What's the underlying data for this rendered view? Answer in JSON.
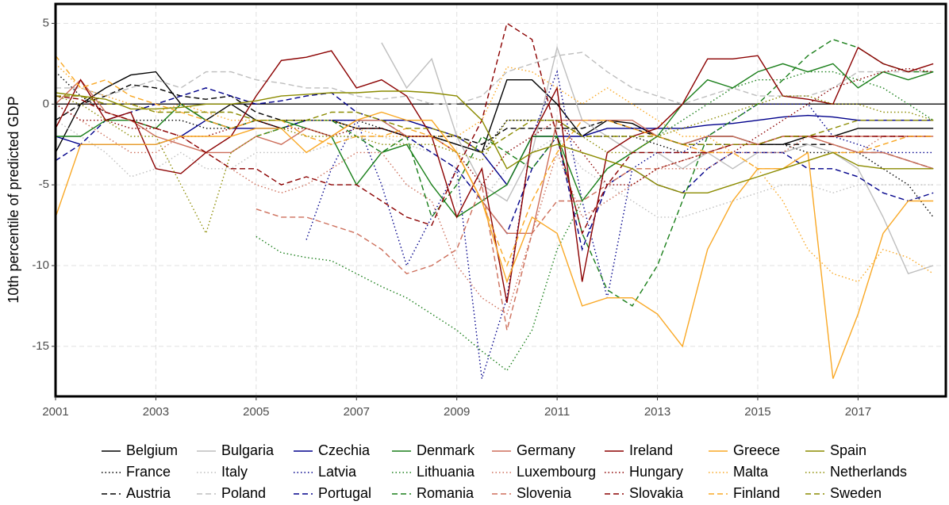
{
  "chart_data": {
    "type": "line",
    "y_label": "10th percentile of predicted GDP",
    "xlim": [
      2001,
      2018.75
    ],
    "ylim": [
      -18.1,
      6.2
    ],
    "xticks": [
      2001,
      2003,
      2005,
      2007,
      2009,
      2011,
      2013,
      2015,
      2017
    ],
    "yticks": [
      -15,
      -10,
      -5,
      0,
      5
    ],
    "grid": true,
    "hline": 0,
    "legend": "bottom",
    "x": [
      2001,
      2001.5,
      2002,
      2002.5,
      2003,
      2003.5,
      2004,
      2004.5,
      2005,
      2005.5,
      2006,
      2006.5,
      2007,
      2007.5,
      2008,
      2008.5,
      2009,
      2009.5,
      2010,
      2010.5,
      2011,
      2011.5,
      2012,
      2012.5,
      2013,
      2013.5,
      2014,
      2014.5,
      2015,
      2015.5,
      2016,
      2016.5,
      2017,
      2017.5,
      2018,
      2018.5
    ],
    "series": [
      {
        "name": "Belgium",
        "color": "#000000",
        "linetype": "solid",
        "values": [
          -3,
          0,
          1,
          1.8,
          2,
          0,
          -1,
          0,
          -1,
          -1.5,
          -1,
          -1,
          -1.5,
          -1.5,
          -2,
          -2,
          -2.5,
          -3,
          1.5,
          1.5,
          0,
          -2,
          -1,
          -1.2,
          -2,
          -2.5,
          -2,
          -2,
          -2.5,
          -2.5,
          -2,
          -2,
          -1.5,
          -1.5,
          -1.5,
          -1.5
        ]
      },
      {
        "name": "France",
        "color": "#000000",
        "linetype": "dotted",
        "values": [
          2,
          0.5,
          -0.5,
          -1,
          -1,
          -1,
          -1.5,
          -1.5,
          -1,
          -1,
          -1,
          -1,
          -1,
          -1.5,
          -2,
          -2,
          -2.5,
          -3,
          -1,
          -1,
          -1,
          -2,
          -2,
          -2,
          -2.5,
          -3,
          -3,
          -2.5,
          -2.5,
          -2.5,
          -3,
          -3,
          -3,
          -4,
          -5,
          -7
        ]
      },
      {
        "name": "Austria",
        "color": "#000000",
        "linetype": "dashed",
        "values": [
          -1,
          0,
          0.5,
          1.2,
          1,
          0.5,
          0.3,
          0.5,
          -0.5,
          -1,
          -1,
          -1,
          -1.5,
          -1.5,
          -2,
          -2,
          -2,
          -2.5,
          -1.5,
          -1.5,
          -1.5,
          -1.5,
          -1,
          -1.5,
          -2,
          -2.5,
          -2.5,
          -2.5,
          -2.5,
          -2.5,
          -2.5,
          -2.5,
          -3,
          -3,
          -3.5,
          -4
        ]
      },
      {
        "name": "Bulgaria",
        "color": "#bebebe",
        "linetype": "solid",
        "values": [
          null,
          null,
          null,
          null,
          null,
          null,
          null,
          null,
          null,
          null,
          null,
          null,
          null,
          3.8,
          1,
          2.8,
          -2,
          -5,
          -6,
          -3,
          3.5,
          -1,
          -2,
          -3,
          -3,
          -4,
          -3,
          -4,
          -3,
          -3,
          -2.5,
          -3,
          -4,
          -7,
          -10.5,
          -10
        ]
      },
      {
        "name": "Italy",
        "color": "#bebebe",
        "linetype": "dotted",
        "values": [
          -1,
          -2,
          -3,
          -4.5,
          -4,
          -3,
          -4,
          -4,
          -3,
          -3,
          -3,
          -2.5,
          -2,
          -2,
          -2.5,
          -3,
          -4,
          -6,
          -4,
          -3,
          -2,
          -4,
          -5,
          -6,
          -7,
          -7,
          -6.5,
          -6,
          -5.5,
          -5,
          -5,
          -5.5,
          -5,
          -5,
          -5,
          -5
        ]
      },
      {
        "name": "Poland",
        "color": "#bebebe",
        "linetype": "dashed",
        "values": [
          1,
          1,
          0.5,
          1,
          1.5,
          1,
          2,
          2,
          1.5,
          1.3,
          1,
          1,
          0.5,
          0.3,
          0.5,
          0,
          0,
          0.5,
          2,
          2.5,
          3,
          3.2,
          2,
          1,
          0.5,
          0,
          0.5,
          1,
          0.5,
          0.5,
          0.5,
          1,
          2,
          2,
          2,
          2
        ]
      },
      {
        "name": "Czechia",
        "color": "#00008b",
        "linetype": "solid",
        "values": [
          -2,
          -2.5,
          -2.5,
          -2.5,
          -2.5,
          -2,
          -1,
          -1.5,
          -1.5,
          -1.5,
          -1,
          -1,
          -1,
          -1,
          -1,
          -1.5,
          -2,
          -3,
          -5,
          -2,
          -2,
          -2,
          -1.5,
          -1.5,
          -1.5,
          -1.5,
          -1.3,
          -1.2,
          -1,
          -0.8,
          -0.7,
          -0.8,
          -1,
          -1,
          -1,
          -1
        ]
      },
      {
        "name": "Latvia",
        "color": "#00008b",
        "linetype": "dotted",
        "values": [
          null,
          null,
          null,
          null,
          null,
          null,
          null,
          null,
          null,
          null,
          -8.4,
          -4,
          -1,
          -5,
          -10,
          -7,
          -4,
          -17,
          -12,
          -2,
          2,
          -6,
          -12,
          -4,
          -3,
          -3,
          -2,
          -1,
          0,
          0,
          0,
          -2,
          -2.5,
          -3,
          -3,
          -3
        ]
      },
      {
        "name": "Portugal",
        "color": "#00008b",
        "linetype": "dashed",
        "values": [
          -3.5,
          -2.5,
          -1,
          -0.5,
          0,
          0.5,
          1,
          0.5,
          0,
          0.2,
          0.5,
          0.7,
          -0.5,
          -1,
          -2,
          -3,
          -4,
          -6,
          -8,
          -4,
          -2,
          -9,
          -5,
          -4,
          -5,
          -5.5,
          -4,
          -3,
          -3,
          -3,
          -4,
          -4,
          -4.5,
          -5.5,
          -6,
          -5.5
        ]
      },
      {
        "name": "Denmark",
        "color": "#1a7f1a",
        "linetype": "solid",
        "values": [
          -2,
          -2,
          -1,
          -1,
          -1.5,
          0,
          -1,
          -1.5,
          -1,
          -1,
          -1.5,
          -2,
          -5,
          -3,
          -2.5,
          -5,
          -7,
          -6,
          -5,
          -2,
          -2,
          -6,
          -4,
          -3,
          -2,
          0,
          1.5,
          1,
          2,
          2.5,
          2,
          2.5,
          1,
          2,
          1.5,
          2
        ]
      },
      {
        "name": "Lithuania",
        "color": "#1a7f1a",
        "linetype": "dotted",
        "values": [
          null,
          null,
          null,
          null,
          null,
          null,
          null,
          null,
          -8.2,
          -9.2,
          -9.5,
          -9.7,
          -10.5,
          -11.3,
          -12,
          -13,
          -14,
          -15.3,
          -16.5,
          -14,
          -9,
          -6,
          -4,
          -3,
          -2,
          -1,
          0,
          1,
          1.5,
          1.5,
          2,
          2,
          1.5,
          1,
          0,
          -1
        ]
      },
      {
        "name": "Romania",
        "color": "#1a7f1a",
        "linetype": "dashed",
        "values": [
          null,
          null,
          null,
          null,
          null,
          null,
          null,
          null,
          -2,
          -1.5,
          -1,
          -1,
          -2,
          -3,
          -2,
          -7,
          -5,
          -2,
          -3,
          -4,
          -2,
          -8,
          -11.5,
          -12.5,
          -10,
          -6,
          -2,
          -1,
          0,
          1.5,
          3,
          4,
          3.5,
          2.5,
          2,
          2
        ]
      },
      {
        "name": "Germany",
        "color": "#cd6f5b",
        "linetype": "solid",
        "values": [
          0,
          1.5,
          -0.5,
          -1,
          -2,
          -2.5,
          -3,
          -3,
          -2,
          -2.5,
          -1.5,
          -2,
          -1,
          -1,
          -2,
          -2,
          -3,
          -6,
          -8,
          -8,
          -1,
          -1,
          -1,
          -1,
          -2,
          -2.5,
          -2,
          -2,
          -2.5,
          -2,
          -2,
          -2.5,
          -3,
          -3,
          -3.5,
          -4
        ]
      },
      {
        "name": "Luxembourg",
        "color": "#cd6f5b",
        "linetype": "dotted",
        "values": [
          0,
          -1,
          -2,
          -3,
          -3,
          -2,
          -3,
          -4,
          -5,
          -5.5,
          -5,
          -4,
          -3,
          -3,
          -5,
          -6,
          -10,
          -12,
          -13,
          -8,
          -3,
          -7,
          -6,
          -5,
          -4,
          -4,
          -4,
          -3,
          -3,
          -3,
          -2,
          -2.5,
          -3,
          -2,
          -2,
          -2
        ]
      },
      {
        "name": "Slovenia",
        "color": "#cd6f5b",
        "linetype": "dashed",
        "values": [
          null,
          null,
          null,
          null,
          null,
          null,
          null,
          null,
          -6.5,
          -7,
          -7,
          -7.5,
          -8,
          -9,
          -10.5,
          -10,
          -9,
          -5,
          -14,
          -8,
          -6,
          -6,
          -5,
          -4,
          -4,
          -3.5,
          -3,
          -2.5,
          -2.5,
          -2,
          -2,
          -2,
          -2,
          -2,
          -2,
          -2
        ]
      },
      {
        "name": "Ireland",
        "color": "#8b0000",
        "linetype": "solid",
        "values": [
          -1.5,
          1.5,
          -1,
          -0.5,
          -4,
          -4.3,
          -3,
          -2,
          0.5,
          2.7,
          2.9,
          3.3,
          1,
          1.5,
          0.5,
          -2,
          -7,
          -4,
          -12.3,
          -2,
          1,
          -11,
          -3,
          -2,
          -1.5,
          0,
          2.8,
          2.8,
          3,
          0.5,
          0.3,
          0,
          3.5,
          2.5,
          2,
          2.5
        ]
      },
      {
        "name": "Hungary",
        "color": "#8b0000",
        "linetype": "dotted",
        "values": [
          0,
          -1,
          -1,
          -1.5,
          -1.5,
          -2,
          -2,
          -1.5,
          -1,
          -1.5,
          -1.5,
          -2,
          -1.5,
          -1.5,
          -2,
          -2,
          -3,
          -5,
          -3,
          -2,
          -1,
          -3,
          -5,
          -5,
          -4,
          -3.5,
          -3,
          -3,
          -2,
          -1,
          0,
          1,
          1.5,
          2,
          2.2,
          2
        ]
      },
      {
        "name": "Slovakia",
        "color": "#8b0000",
        "linetype": "dashed",
        "values": [
          0.5,
          0.3,
          -0.5,
          -1,
          -1.5,
          -2,
          -3,
          -4,
          -4,
          -5,
          -4.5,
          -5,
          -5,
          -6,
          -7,
          -7.5,
          -4,
          -1,
          5,
          4,
          -2,
          -8,
          -5,
          -3,
          -3,
          -3,
          -3,
          -2.5,
          -2.5,
          -2,
          -2,
          -2,
          -2,
          -2,
          -2,
          -2
        ]
      },
      {
        "name": "Greece",
        "color": "#f9a825",
        "linetype": "solid",
        "values": [
          -7,
          -2.5,
          -2.5,
          -2.5,
          -2.5,
          -2,
          -2,
          -2,
          -1.5,
          -1.5,
          -3,
          -2,
          -1,
          -0.5,
          -1,
          -1,
          -3,
          -6,
          -11,
          -7,
          -8,
          -12.5,
          -12,
          -12,
          -13,
          -15,
          -9,
          -6,
          -4,
          -4,
          -3,
          -17,
          -13,
          -8,
          -6,
          -6
        ]
      },
      {
        "name": "Malta",
        "color": "#f9a825",
        "linetype": "dotted",
        "values": [
          2.5,
          1,
          0.5,
          0,
          -0.5,
          0,
          -0.5,
          -1,
          -1,
          -1,
          -1,
          -1,
          -1.5,
          -2,
          -2,
          -2,
          -2,
          -1,
          2.3,
          2,
          1,
          0,
          1,
          0,
          -1,
          -2,
          -2,
          -3,
          -4,
          -6,
          -9,
          -10.5,
          -11,
          -9,
          -9.5,
          -10.5
        ]
      },
      {
        "name": "Finland",
        "color": "#f9a825",
        "linetype": "dashed",
        "values": [
          3,
          1,
          1.5,
          0.5,
          0,
          -0.5,
          -1,
          -1.5,
          -1,
          -1,
          -2,
          -2.5,
          -2,
          -2,
          -1.5,
          -2,
          -3,
          -6,
          -10,
          -6,
          -3,
          -1,
          -1,
          -1.5,
          -2,
          -2.5,
          -3,
          -3,
          -4,
          -4,
          -3.5,
          -3,
          -3,
          -2.5,
          -2,
          -2
        ]
      },
      {
        "name": "Spain",
        "color": "#8b8b00",
        "linetype": "solid",
        "values": [
          0.7,
          0.5,
          0.3,
          -0.3,
          -0.3,
          -0.2,
          0,
          0,
          0.2,
          0.5,
          0.6,
          0.7,
          0.7,
          0.8,
          0.8,
          0.7,
          0.5,
          -1,
          -4,
          -3,
          -2.5,
          -3,
          -3.5,
          -4,
          -5,
          -5.5,
          -5.5,
          -5,
          -4.5,
          -4,
          -3.5,
          -3,
          -3.8,
          -4,
          -4,
          -4
        ]
      },
      {
        "name": "Netherlands",
        "color": "#8b8b00",
        "linetype": "dotted",
        "values": [
          0.5,
          0,
          -1,
          -2,
          -2,
          -5,
          -8,
          -3,
          -2,
          -1.5,
          -2,
          -2,
          -2,
          -2.5,
          -2.5,
          -2.5,
          -3,
          -3.5,
          -1,
          -1,
          -1,
          -2,
          -3,
          -3,
          -2,
          -1.5,
          -1,
          -0.5,
          0,
          0.5,
          0.5,
          0,
          0,
          -0.5,
          -0.5,
          -1
        ]
      },
      {
        "name": "Sweden",
        "color": "#8b8b00",
        "linetype": "dashed",
        "values": [
          0.5,
          0.5,
          0,
          0,
          -0.5,
          -0.5,
          -0.5,
          -0.5,
          -1,
          -1,
          -1,
          -0.5,
          -0.5,
          -1,
          -1.5,
          -1.5,
          -2,
          -3,
          -2,
          -1,
          -1,
          -2,
          -2,
          -2,
          -2,
          -2.5,
          -2.5,
          -2.5,
          -2.5,
          -2,
          -2,
          -1.5,
          -1,
          -1,
          -1,
          -1
        ]
      }
    ]
  }
}
